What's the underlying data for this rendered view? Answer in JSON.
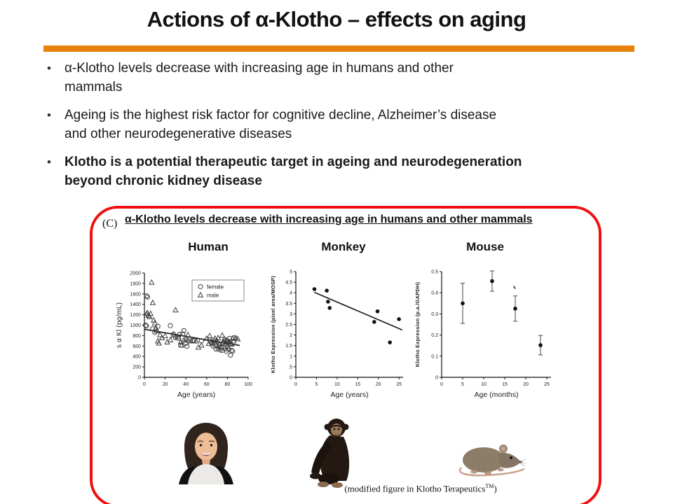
{
  "slide": {
    "title": "Actions of α-Klotho – effects on aging",
    "bullet_char": "•",
    "accent_orange": "#E8820C",
    "panel_border_red": "#EE1111",
    "bullets": [
      {
        "text": "α-Klotho levels decrease with increasing age in humans and other\nmammals",
        "bold": false
      },
      {
        "text": "Ageing is the highest risk factor for cognitive decline, Alzheimer’s disease\nand other neurodegenerative diseases",
        "bold": false
      },
      {
        "text": "Klotho is a potential therapeutic target in ageing and neurodegeneration\nbeyond chronic kidney disease",
        "bold": true
      }
    ]
  },
  "panel": {
    "label": "(C)",
    "header": "α-Klotho levels decrease with increasing age in humans and other mammals",
    "columns": [
      "Human",
      "Monkey",
      "Mouse"
    ],
    "caption": {
      "prefix": "(modified figure in Klotho Terapeutics",
      "sup": "TM",
      "suffix": ")"
    }
  },
  "chart_data": [
    {
      "id": "human",
      "type": "scatter",
      "title": "Human",
      "xlabel": "Age (years)",
      "ylabel": "s α Kl (pg/mL)",
      "xlim": [
        0,
        100
      ],
      "ylim": [
        0,
        2000
      ],
      "xticks": [
        0,
        20,
        40,
        60,
        80,
        100
      ],
      "yticks": [
        0,
        200,
        400,
        600,
        800,
        1000,
        1200,
        1400,
        1600,
        1800,
        2000
      ],
      "grid": false,
      "legend": {
        "position": "top-right",
        "items": [
          {
            "marker": "circle",
            "label": "female"
          },
          {
            "marker": "triangle",
            "label": "male"
          }
        ]
      },
      "trendline": {
        "x1": 0,
        "y1": 920,
        "x2": 92,
        "y2": 610
      },
      "series": [
        {
          "name": "female",
          "marker": "circle",
          "points": [
            [
              1,
              1000
            ],
            [
              2,
              1560
            ],
            [
              3,
              1540
            ],
            [
              2,
              985
            ],
            [
              8,
              930
            ],
            [
              10,
              860
            ],
            [
              13,
              980
            ],
            [
              25,
              990
            ],
            [
              28,
              830
            ],
            [
              30,
              760
            ],
            [
              33,
              745
            ],
            [
              34,
              825
            ],
            [
              35,
              615
            ],
            [
              37,
              830
            ],
            [
              38,
              895
            ],
            [
              40,
              650
            ],
            [
              41,
              595
            ],
            [
              42,
              700
            ],
            [
              44,
              735
            ],
            [
              48,
              705
            ],
            [
              55,
              700
            ],
            [
              63,
              715
            ],
            [
              64,
              680
            ],
            [
              65,
              645
            ],
            [
              66,
              600
            ],
            [
              67,
              655
            ],
            [
              68,
              620
            ],
            [
              69,
              540
            ],
            [
              70,
              600
            ],
            [
              71,
              550
            ],
            [
              72,
              580
            ],
            [
              73,
              525
            ],
            [
              74,
              565
            ],
            [
              75,
              515
            ],
            [
              76,
              650
            ],
            [
              77,
              695
            ],
            [
              78,
              545
            ],
            [
              79,
              500
            ],
            [
              80,
              695
            ],
            [
              81,
              540
            ],
            [
              82,
              745
            ],
            [
              83,
              425
            ],
            [
              84,
              515
            ],
            [
              85,
              500
            ],
            [
              86,
              755
            ]
          ]
        },
        {
          "name": "male",
          "marker": "triangle",
          "points": [
            [
              2,
              1215
            ],
            [
              3,
              1235
            ],
            [
              4,
              1185
            ],
            [
              5,
              1160
            ],
            [
              6,
              1220
            ],
            [
              7,
              1820
            ],
            [
              8,
              1430
            ],
            [
              9,
              1095
            ],
            [
              10,
              1040
            ],
            [
              11,
              945
            ],
            [
              12,
              890
            ],
            [
              13,
              695
            ],
            [
              14,
              655
            ],
            [
              15,
              815
            ],
            [
              17,
              755
            ],
            [
              20,
              795
            ],
            [
              22,
              675
            ],
            [
              25,
              715
            ],
            [
              28,
              805
            ],
            [
              30,
              1290
            ],
            [
              32,
              775
            ],
            [
              35,
              675
            ],
            [
              36,
              615
            ],
            [
              38,
              715
            ],
            [
              40,
              735
            ],
            [
              42,
              815
            ],
            [
              45,
              695
            ],
            [
              47,
              705
            ],
            [
              50,
              695
            ],
            [
              52,
              575
            ],
            [
              55,
              615
            ],
            [
              60,
              745
            ],
            [
              62,
              645
            ],
            [
              63,
              795
            ],
            [
              65,
              675
            ],
            [
              67,
              715
            ],
            [
              68,
              745
            ],
            [
              70,
              695
            ],
            [
              71,
              755
            ],
            [
              72,
              635
            ],
            [
              74,
              595
            ],
            [
              75,
              805
            ],
            [
              76,
              675
            ],
            [
              77,
              735
            ],
            [
              78,
              645
            ],
            [
              79,
              715
            ],
            [
              80,
              595
            ],
            [
              81,
              675
            ],
            [
              82,
              675
            ],
            [
              83,
              645
            ],
            [
              84,
              635
            ],
            [
              85,
              745
            ],
            [
              86,
              695
            ],
            [
              88,
              755
            ],
            [
              90,
              735
            ]
          ]
        }
      ]
    },
    {
      "id": "monkey",
      "type": "scatter",
      "title": "Monkey",
      "xlabel": "Age (years)",
      "ylabel": "Klotho Expression (pixel area/MOSP)",
      "xlim": [
        0,
        26
      ],
      "ylim": [
        0,
        5
      ],
      "xticks": [
        0,
        5,
        10,
        15,
        20,
        25
      ],
      "yticks": [
        0,
        0.5,
        1,
        1.5,
        2,
        2.5,
        3,
        3.5,
        4,
        4.5,
        5
      ],
      "ytick_labels": [
        "0",
        ".5",
        "1",
        "1.5",
        "2",
        "2.5",
        "3",
        "3.5",
        "4",
        "4.5",
        "5"
      ],
      "grid": false,
      "trendline": {
        "x1": 4.5,
        "y1": 4.02,
        "x2": 25.8,
        "y2": 2.24
      },
      "series": [
        {
          "name": "monkeys",
          "marker": "dot",
          "points": [
            [
              4.5,
              4.17
            ],
            [
              7.5,
              4.1
            ],
            [
              7.8,
              3.58
            ],
            [
              8.2,
              3.28
            ],
            [
              19,
              2.62
            ],
            [
              19.8,
              3.12
            ],
            [
              22.8,
              1.65
            ],
            [
              25,
              2.75
            ]
          ]
        }
      ]
    },
    {
      "id": "mouse",
      "type": "scatter",
      "title": "Mouse",
      "xlabel": "Age (months)",
      "ylabel": "Klotho Expression (p.a./GAPDH)",
      "xlim": [
        0,
        26
      ],
      "ylim": [
        0,
        0.5
      ],
      "xticks": [
        0,
        5,
        10,
        15,
        20,
        25
      ],
      "yticks": [
        0,
        0.1,
        0.2,
        0.3,
        0.4,
        0.5
      ],
      "ytick_labels": [
        "0",
        "0.1",
        "0.2",
        "0.3",
        "0.4",
        "0.5"
      ],
      "grid": false,
      "stray_mark": {
        "x": 17.3,
        "y": 0.425
      },
      "series": [
        {
          "name": "mice",
          "marker": "dot",
          "errorbars": true,
          "points": [
            [
              5,
              0.35,
              0.095
            ],
            [
              12,
              0.455,
              0.048
            ],
            [
              17.5,
              0.325,
              0.06
            ],
            [
              23.5,
              0.152,
              0.046
            ]
          ]
        }
      ]
    }
  ]
}
